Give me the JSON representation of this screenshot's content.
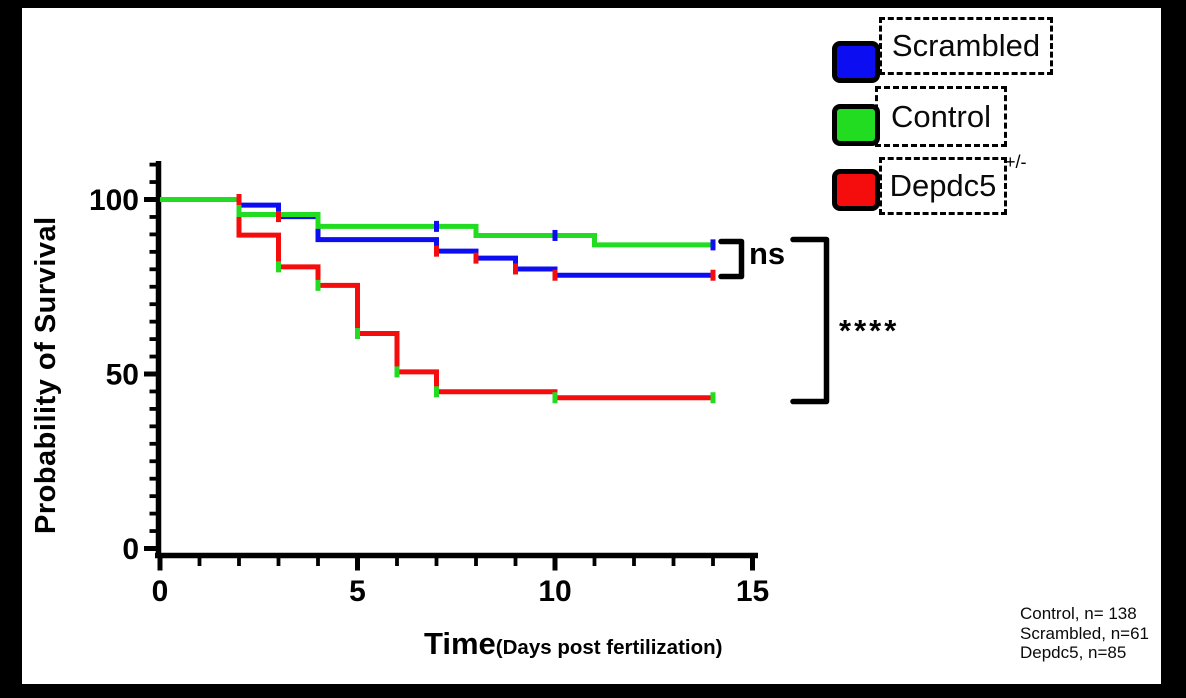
{
  "figure_bg": "#000000",
  "plot_bg": "#ffffff",
  "colors": {
    "blue": "#0d0df2",
    "green": "#21dc21",
    "red": "#f50c0c",
    "axis": "#000000"
  },
  "legend": {
    "items": [
      {
        "label": "Scrambled",
        "color_key": "blue",
        "superscript": ""
      },
      {
        "label": "Control",
        "color_key": "green",
        "superscript": ""
      },
      {
        "label": "Depdc5",
        "color_key": "red",
        "superscript": "+/-"
      }
    ]
  },
  "annotations": {
    "ns_label": "ns",
    "sig_label": "****"
  },
  "counts": {
    "lines": [
      "Control, n= 138",
      "Scrambled, n=61",
      "Depdc5, n=85"
    ]
  },
  "chart_data": {
    "type": "line",
    "subtype": "kaplan-meier-step-survival",
    "title": "",
    "xlabel": "Time",
    "xlabel_suffix": "(Days post fertilization)",
    "ylabel": "Probability of Survival",
    "xlim": [
      0,
      15
    ],
    "ylim": [
      0,
      110
    ],
    "x_major_ticks": [
      0,
      5,
      10,
      15
    ],
    "x_minor_tick_step": 1,
    "y_major_ticks": [
      0,
      50,
      100
    ],
    "y_minor_tick_step": 5,
    "grid": false,
    "legend_position": "top-right",
    "series": [
      {
        "name": "Depdc5+/-",
        "id": "depdc5",
        "color_key": "red",
        "n": 85,
        "end_day": 14,
        "steps": [
          [
            0,
            100
          ],
          [
            2,
            89.8
          ],
          [
            3,
            80.7
          ],
          [
            4,
            75.4
          ],
          [
            5,
            61.6
          ],
          [
            6,
            50.6
          ],
          [
            7,
            44.9
          ],
          [
            10,
            43.2
          ]
        ]
      },
      {
        "name": "Scrambled",
        "id": "scrambled",
        "color_key": "blue",
        "n": 61,
        "end_day": 14,
        "steps": [
          [
            0,
            100
          ],
          [
            2,
            98.4
          ],
          [
            3,
            95.1
          ],
          [
            4,
            88.5
          ],
          [
            7,
            85.2
          ],
          [
            8,
            83.2
          ],
          [
            9,
            80.1
          ],
          [
            10,
            78.3
          ]
        ]
      },
      {
        "name": "Control",
        "id": "control",
        "color_key": "green",
        "n": 138,
        "end_day": 14,
        "steps": [
          [
            0,
            100
          ],
          [
            2,
            95.7
          ],
          [
            4,
            92.3
          ],
          [
            8,
            89.7
          ],
          [
            11,
            87.0
          ]
        ]
      }
    ],
    "censor_marks": [
      {
        "day": 2,
        "value": 100,
        "color_key": "red"
      },
      {
        "day": 3,
        "value": 95.1,
        "color_key": "red"
      },
      {
        "day": 3,
        "value": 80.7,
        "color_key": "green"
      },
      {
        "day": 4,
        "value": 75.4,
        "color_key": "green"
      },
      {
        "day": 5,
        "value": 61.6,
        "color_key": "green"
      },
      {
        "day": 6,
        "value": 50.6,
        "color_key": "green"
      },
      {
        "day": 7,
        "value": 44.9,
        "color_key": "green"
      },
      {
        "day": 10,
        "value": 43.2,
        "color_key": "green"
      },
      {
        "day": 14,
        "value": 43.2,
        "color_key": "green"
      },
      {
        "day": 7,
        "value": 85.2,
        "color_key": "red"
      },
      {
        "day": 8,
        "value": 83.2,
        "color_key": "red"
      },
      {
        "day": 9,
        "value": 80.1,
        "color_key": "red"
      },
      {
        "day": 10,
        "value": 78.3,
        "color_key": "red"
      },
      {
        "day": 14,
        "value": 78.3,
        "color_key": "red"
      },
      {
        "day": 7,
        "value": 92.3,
        "color_key": "blue"
      },
      {
        "day": 10,
        "value": 89.7,
        "color_key": "blue"
      },
      {
        "day": 14,
        "value": 87.0,
        "color_key": "blue"
      }
    ],
    "comparisons": [
      {
        "groups": [
          "Control",
          "Scrambled"
        ],
        "result": "ns"
      },
      {
        "groups": [
          "Control/Scrambled",
          "Depdc5+/-"
        ],
        "result": "****"
      }
    ]
  }
}
